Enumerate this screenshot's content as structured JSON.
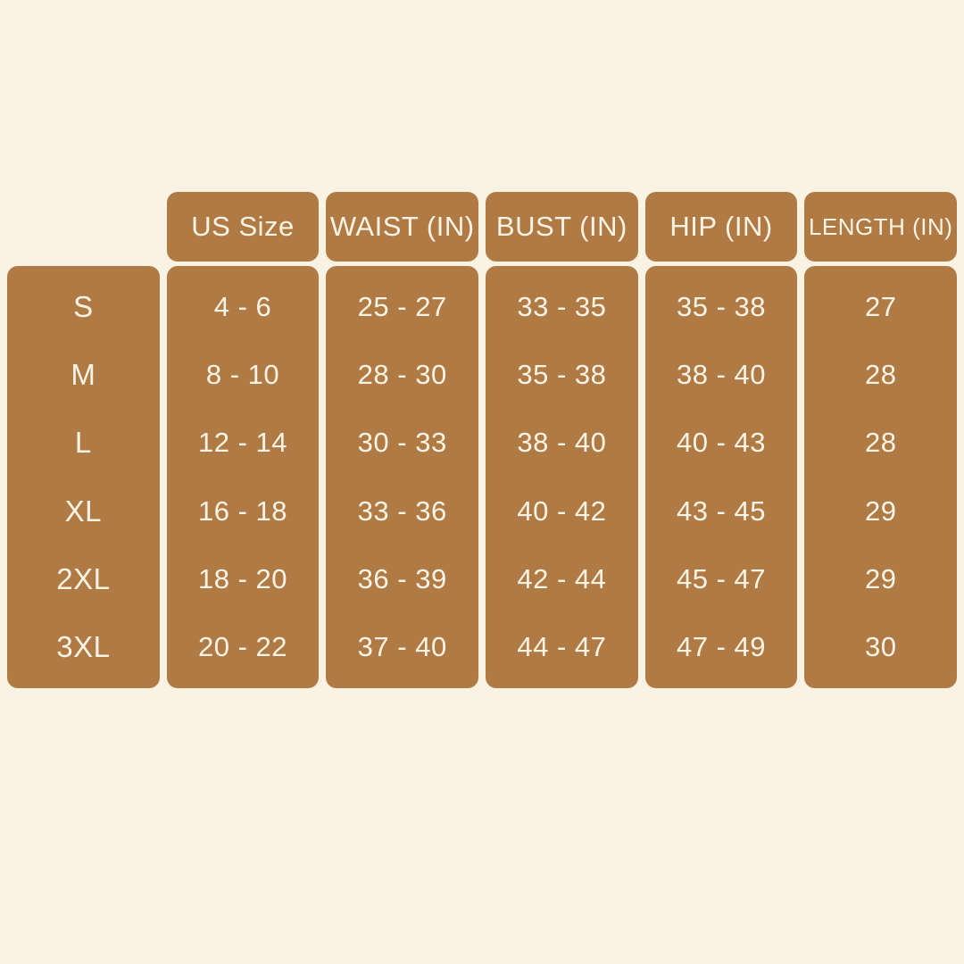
{
  "colors": {
    "background": "#FAF2E3",
    "box_brown": "#B07A44",
    "text": "#FBF4E6"
  },
  "chart_data": {
    "type": "table",
    "title": "",
    "columns": [
      {
        "header": "",
        "values": [
          "S",
          "M",
          "L",
          "XL",
          "2XL",
          "3XL"
        ]
      },
      {
        "header": "US Size",
        "values": [
          "4 - 6",
          "8 - 10",
          "12 - 14",
          "16 - 18",
          "18 - 20",
          "20 - 22"
        ]
      },
      {
        "header": "WAIST (IN)",
        "values": [
          "25 - 27",
          "28 - 30",
          "30 - 33",
          "33 - 36",
          "36 - 39",
          "37 - 40"
        ]
      },
      {
        "header": "BUST (IN)",
        "values": [
          "33 - 35",
          "35 - 38",
          "38 - 40",
          "40 - 42",
          "42 - 44",
          "44 - 47"
        ]
      },
      {
        "header": "HIP (IN)",
        "values": [
          "35 - 38",
          "38 - 40",
          "40 - 43",
          "43 - 45",
          "45 - 47",
          "47 - 49"
        ]
      },
      {
        "header": "LENGTH (IN)",
        "values": [
          "27",
          "28",
          "28",
          "29",
          "29",
          "30"
        ]
      }
    ],
    "rows": [
      {
        "size": "S",
        "us_size": "4 - 6",
        "waist_in": "25 - 27",
        "bust_in": "33 - 35",
        "hip_in": "35 - 38",
        "length_in": "27"
      },
      {
        "size": "M",
        "us_size": "8 - 10",
        "waist_in": "28 - 30",
        "bust_in": "35 - 38",
        "hip_in": "38 - 40",
        "length_in": "28"
      },
      {
        "size": "L",
        "us_size": "12 - 14",
        "waist_in": "30 - 33",
        "bust_in": "38 - 40",
        "hip_in": "40 - 43",
        "length_in": "28"
      },
      {
        "size": "XL",
        "us_size": "16 - 18",
        "waist_in": "33 - 36",
        "bust_in": "40 - 42",
        "hip_in": "43 - 45",
        "length_in": "29"
      },
      {
        "size": "2XL",
        "us_size": "18 - 20",
        "waist_in": "36 - 39",
        "bust_in": "42 - 44",
        "hip_in": "45 - 47",
        "length_in": "29"
      },
      {
        "size": "3XL",
        "us_size": "20 - 22",
        "waist_in": "37 - 40",
        "bust_in": "44 - 47",
        "hip_in": "47 - 49",
        "length_in": "30"
      }
    ]
  }
}
